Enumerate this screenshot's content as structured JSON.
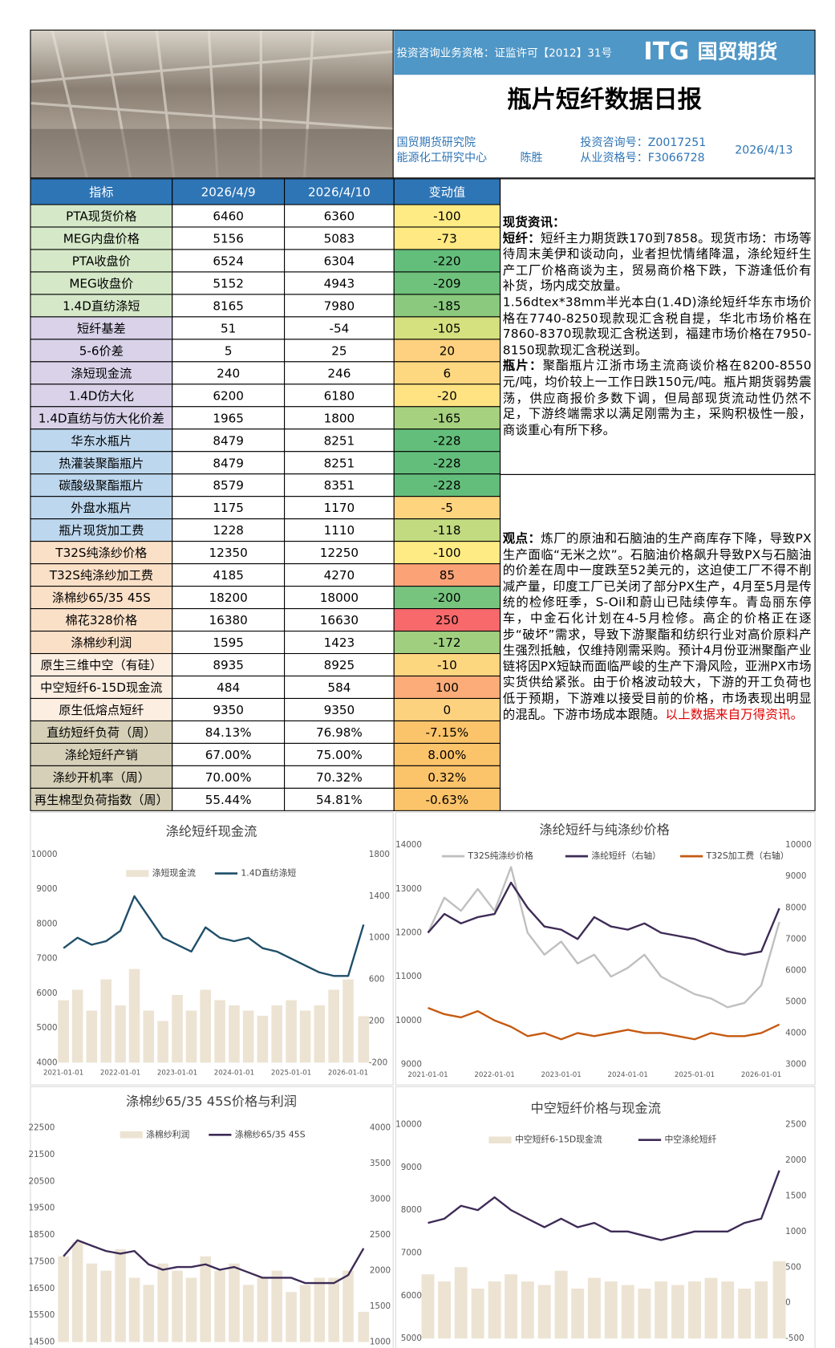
{
  "header": {
    "qualification": "投资咨询业务资格：证监许可【2012】31号",
    "brand_latin": "ITG",
    "brand": "国贸期货",
    "title": "瓶片短纤数据日报",
    "institute": "国贸期货研究院",
    "center": "能源化工研究中心",
    "analyst": "陈胜",
    "consult_no": "投资咨询号：Z0017251",
    "license_no": "从业资格号：F3066728",
    "date": "2026/4/13"
  },
  "table": {
    "columns": [
      "指标",
      "2026/4/9",
      "2026/4/10",
      "变动值"
    ],
    "rows": [
      [
        "PTA现货价格",
        "6460",
        "6360",
        "-100"
      ],
      [
        "MEG内盘价格",
        "5156",
        "5083",
        "-73"
      ],
      [
        "PTA收盘价",
        "6524",
        "6304",
        "-220"
      ],
      [
        "MEG收盘价",
        "5152",
        "4943",
        "-209"
      ],
      [
        "1.4D直纺涤短",
        "8165",
        "7980",
        "-185"
      ],
      [
        "短纤基差",
        "51",
        "-54",
        "-105"
      ],
      [
        "5-6价差",
        "5",
        "25",
        "20"
      ],
      [
        "涤短现金流",
        "240",
        "246",
        "6"
      ],
      [
        "1.4D仿大化",
        "6200",
        "6180",
        "-20"
      ],
      [
        "1.4D直纺与仿大化价差",
        "1965",
        "1800",
        "-165"
      ],
      [
        "华东水瓶片",
        "8479",
        "8251",
        "-228"
      ],
      [
        "热灌装聚酯瓶片",
        "8479",
        "8251",
        "-228"
      ],
      [
        "碳酸级聚酯瓶片",
        "8579",
        "8351",
        "-228"
      ],
      [
        "外盘水瓶片",
        "1175",
        "1170",
        "-5"
      ],
      [
        "瓶片现货加工费",
        "1228",
        "1110",
        "-118"
      ],
      [
        "T32S纯涤纱价格",
        "12350",
        "12250",
        "-100"
      ],
      [
        "T32S纯涤纱加工费",
        "4185",
        "4270",
        "85"
      ],
      [
        "涤棉纱65/35 45S",
        "18200",
        "18000",
        "-200"
      ],
      [
        "棉花328价格",
        "16380",
        "16630",
        "250"
      ],
      [
        "涤棉纱利润",
        "1595",
        "1423",
        "-172"
      ],
      [
        "原生三维中空（有硅）",
        "8935",
        "8925",
        "-10"
      ],
      [
        "中空短纤6-15D现金流",
        "484",
        "584",
        "100"
      ],
      [
        "原生低熔点短纤",
        "9350",
        "9350",
        "0"
      ],
      [
        "直纺短纤负荷（周）",
        "84.13%",
        "76.98%",
        "-7.15%"
      ],
      [
        "涤纶短纤产销",
        "67.00%",
        "75.00%",
        "8.00%"
      ],
      [
        "涤纱开机率（周）",
        "70.00%",
        "70.32%",
        "0.32%"
      ],
      [
        "再生棉型负荷指数（周）",
        "55.44%",
        "54.81%",
        "-0.63%"
      ]
    ],
    "label_colors": [
      "#d5e8c8",
      "#d5e8c8",
      "#d5e8c8",
      "#d5e8c8",
      "#d5e8c8",
      "#d9d2e9",
      "#d9d2e9",
      "#d9d2e9",
      "#d9d2e9",
      "#d9d2e9",
      "#bdd7ee",
      "#bdd7ee",
      "#bdd7ee",
      "#bdd7ee",
      "#bdd7ee",
      "#fbe0c8",
      "#fbe0c8",
      "#fbe0c8",
      "#fbe0c8",
      "#fbe0c8",
      "#fdeee2",
      "#fdeee2",
      "#fdeee2",
      "#d6d0b8",
      "#d6d0b8",
      "#d6d0b8",
      "#d6d0b8"
    ],
    "change_colors": [
      "#ffeb84",
      "#ffe982",
      "#63be7b",
      "#6fc27c",
      "#8ac97e",
      "#d5e07f",
      "#fdd17f",
      "#fed880",
      "#ffe383",
      "#a6d17f",
      "#63be7b",
      "#63be7b",
      "#63be7b",
      "#fed47f",
      "#c2db80",
      "#ffeb84",
      "#fba276",
      "#76c47d",
      "#f8696b",
      "#a0d07f",
      "#fdd680",
      "#fbac78",
      "#fdd27f",
      "#fcc46a",
      "#fcc46a",
      "#fcc46a",
      "#fcc46a"
    ]
  },
  "commentary": {
    "spot_heading": "现货资讯：",
    "fiber_label": "短纤：",
    "fiber_text": "短纤主力期货跌170到7858。现货市场：市场等待周末美伊和谈动向，业者担忧情绪降温，涤纶短纤生产工厂价格商谈为主，贸易商价格下跌，下游逢低价有补货，场内成交放量。",
    "fiber_prices": "1.56dtex*38mm半光本白(1.4D)涤纶短纤华东市场价格在7740-8250现款现汇含税自提，华北市场价格在7860-8370现款现汇含税送到，福建市场价格在7950-8150现款现汇含税送到。",
    "bottle_label": "瓶片：",
    "bottle_text": "聚酯瓶片江浙市场主流商谈价格在8200-8550元/吨，均价较上一工作日跌150元/吨。瓶片期货弱势震荡，供应商报价多数下调，但局部现货流动性仍然不足，下游终端需求以满足刚需为主，采购积极性一般，商谈重心有所下移。",
    "view_label": "观点：",
    "view_text": "炼厂的原油和石脑油的生产商库存下降，导致PX生产面临“无米之炊”。石脑油价格飙升导致PX与石脑油的价差在周中一度跌至52美元的，这迫使工厂不得不削减产量，印度工厂已关闭了部分PX生产，4月至5月是传统的检修旺季，S-Oil和蔚山已陆续停车。青岛丽东停车，中金石化计划在4-5月检修。高企的价格正在逐步“破坏”需求，导致下游聚酯和纺织行业对高价原料产生强烈抵触，仅维持刚需采购。预计4月份亚洲聚酯产业链将因PX短缺而面临严峻的生产下滑风险，亚洲PX市场实货供给紧张。由于价格波动较大，下游的开工负荷也低于预期，下游难以接受目前的价格，市场表现出明显的混乱。下游市场成本跟随。",
    "source": "以上数据来自万得资讯。"
  },
  "charts": [
    {
      "type": "line",
      "title": "涤纶短纤现金流",
      "x": [
        "2021-01-01",
        "2021-04-01",
        "2021-07-01",
        "2021-10-01",
        "2022-01-01",
        "2022-04-01",
        "2022-07-01",
        "2022-10-01",
        "2023-01-01",
        "2023-04-01",
        "2023-07-01",
        "2023-10-01",
        "2024-01-01",
        "2024-04-01",
        "2024-07-01",
        "2024-10-01",
        "2025-01-01",
        "2025-04-01",
        "2025-07-01",
        "2025-10-01",
        "2026-01-01",
        "2026-04-10"
      ],
      "xlim": [
        "2021-01-01",
        "2026-04-10"
      ],
      "xticks": [
        "2021-01-01",
        "2022-01-01",
        "2023-01-01",
        "2024-01-01",
        "2025-01-01",
        "2026-01-01"
      ],
      "ylim": [
        4000,
        10000
      ],
      "yticks": [
        4000,
        5000,
        6000,
        7000,
        8000,
        9000,
        10000
      ],
      "y2lim": [
        -200,
        1800
      ],
      "y2ticks": [
        -200,
        200,
        600,
        1000,
        1400,
        1800
      ],
      "series": [
        {
          "name": "涤短现金流",
          "type": "bar",
          "axis": "y2",
          "color": "#ede3d3",
          "values": [
            400,
            500,
            300,
            600,
            350,
            700,
            300,
            200,
            450,
            300,
            500,
            400,
            350,
            300,
            250,
            350,
            400,
            300,
            350,
            500,
            600,
            246
          ]
        },
        {
          "name": "1.4D直纺涤短",
          "type": "line",
          "color": "#1f4e69",
          "values": [
            7300,
            7600,
            7400,
            7500,
            7800,
            8800,
            8200,
            7600,
            7400,
            7200,
            7900,
            7600,
            7500,
            7600,
            7300,
            7200,
            7000,
            6800,
            6600,
            6500,
            6500,
            7980
          ]
        }
      ]
    },
    {
      "type": "line",
      "title": "涤纶短纤与纯涤纱价格",
      "x": [
        "2021-01-01",
        "2021-04-01",
        "2021-07-01",
        "2021-10-01",
        "2022-01-01",
        "2022-04-01",
        "2022-07-01",
        "2022-10-01",
        "2023-01-01",
        "2023-04-01",
        "2023-07-01",
        "2023-10-01",
        "2024-01-01",
        "2024-04-01",
        "2024-07-01",
        "2024-10-01",
        "2025-01-01",
        "2025-04-01",
        "2025-07-01",
        "2025-10-01",
        "2026-01-01",
        "2026-04-10"
      ],
      "xlim": [
        "2021-01-01",
        "2026-04-10"
      ],
      "xticks": [
        "2021-01-01",
        "2022-01-01",
        "2023-01-01",
        "2024-01-01",
        "2025-01-01",
        "2026-01-01"
      ],
      "ylim": [
        9000,
        14000
      ],
      "yticks": [
        9000,
        10000,
        11000,
        12000,
        13000,
        14000
      ],
      "y2lim": [
        3000,
        10000
      ],
      "y2ticks": [
        3000,
        4000,
        5000,
        6000,
        7000,
        8000,
        9000,
        10000
      ],
      "series": [
        {
          "name": "T32S纯涤纱价格",
          "type": "line",
          "color": "#bfbfbf",
          "values": [
            12000,
            12800,
            12500,
            13000,
            12500,
            13500,
            12000,
            11500,
            11800,
            11300,
            11500,
            11000,
            11200,
            11500,
            11000,
            10800,
            10600,
            10500,
            10300,
            10400,
            10800,
            12250
          ]
        },
        {
          "name": "涤纶短纤（右轴）",
          "type": "line",
          "axis": "y2",
          "color": "#3d2b56",
          "values": [
            7200,
            7800,
            7500,
            7700,
            7800,
            8800,
            8000,
            7400,
            7300,
            7000,
            7700,
            7400,
            7300,
            7500,
            7200,
            7100,
            7000,
            6800,
            6600,
            6500,
            6600,
            7980
          ]
        },
        {
          "name": "T32S加工费（右轴）",
          "type": "line",
          "axis": "y2",
          "color": "#c55a11",
          "values": [
            4800,
            4600,
            4500,
            4700,
            4400,
            4200,
            3900,
            4000,
            3800,
            4000,
            3900,
            4000,
            4100,
            4000,
            4000,
            3900,
            3800,
            4000,
            3900,
            3900,
            4000,
            4270
          ]
        }
      ]
    },
    {
      "type": "line",
      "title": "涤棉纱65/35 45S价格与利润",
      "x": [
        "2021-01-01",
        "2021-04-01",
        "2021-07-01",
        "2021-10-01",
        "2022-01-01",
        "2022-04-01",
        "2022-07-01",
        "2022-10-01",
        "2023-01-01",
        "2023-04-01",
        "2023-07-01",
        "2023-10-01",
        "2024-01-01",
        "2024-04-01",
        "2024-07-01",
        "2024-10-01",
        "2025-01-01",
        "2025-04-01",
        "2025-07-01",
        "2025-10-01",
        "2026-01-01",
        "2026-04-10"
      ],
      "xlim": [
        "2021-01-01",
        "2026-04-10"
      ],
      "ylim": [
        14500,
        22500
      ],
      "yticks": [
        14500,
        15500,
        16500,
        17500,
        18500,
        19500,
        20500,
        21500,
        22500
      ],
      "y2lim": [
        1000,
        4000
      ],
      "y2ticks": [
        1000,
        1500,
        2000,
        2500,
        3000,
        3500,
        4000
      ],
      "series": [
        {
          "name": "涤棉纱利润",
          "type": "bar",
          "axis": "y2",
          "color": "#ede3d3",
          "values": [
            2200,
            2400,
            2100,
            2000,
            2300,
            1900,
            1800,
            2100,
            2000,
            1900,
            2200,
            2000,
            2100,
            1800,
            1900,
            2000,
            1700,
            1800,
            1900,
            1900,
            2000,
            1423
          ]
        },
        {
          "name": "涤棉纱65/35 45S",
          "type": "line",
          "color": "#3d2b56",
          "values": [
            17700,
            18300,
            18100,
            17900,
            17800,
            17900,
            17400,
            17200,
            17300,
            17300,
            17400,
            17200,
            17300,
            17100,
            16900,
            16900,
            16900,
            16700,
            16700,
            16700,
            17000,
            18000
          ]
        }
      ]
    },
    {
      "type": "line",
      "title": "中空短纤价格与现金流",
      "x": [
        "2021-01-01",
        "2021-04-01",
        "2021-07-01",
        "2021-10-01",
        "2022-01-01",
        "2022-04-01",
        "2022-07-01",
        "2022-10-01",
        "2023-01-01",
        "2023-04-01",
        "2023-07-01",
        "2023-10-01",
        "2024-01-01",
        "2024-04-01",
        "2024-07-01",
        "2024-10-01",
        "2025-01-01",
        "2025-04-01",
        "2025-07-01",
        "2025-10-01",
        "2026-01-01",
        "2026-04-10"
      ],
      "xlim": [
        "2021-01-01",
        "2026-04-10"
      ],
      "ylim": [
        5000,
        10000
      ],
      "yticks": [
        5000,
        6000,
        7000,
        8000,
        9000,
        10000
      ],
      "y2lim": [
        -500,
        2500
      ],
      "y2ticks": [
        -500,
        0,
        500,
        1000,
        1500,
        2000,
        2500
      ],
      "series": [
        {
          "name": "中空短纤6-15D现金流",
          "type": "bar",
          "axis": "y2",
          "color": "#ede3d3",
          "values": [
            400,
            300,
            500,
            200,
            300,
            400,
            300,
            250,
            450,
            200,
            350,
            300,
            250,
            200,
            300,
            250,
            300,
            350,
            300,
            200,
            300,
            584
          ]
        },
        {
          "name": "中空涤纶短纤",
          "type": "line",
          "color": "#3d2b56",
          "values": [
            7700,
            7800,
            8100,
            8000,
            8300,
            8000,
            7800,
            7600,
            7800,
            7600,
            7700,
            7500,
            7500,
            7400,
            7300,
            7400,
            7500,
            7500,
            7500,
            7700,
            7800,
            8925
          ]
        }
      ]
    }
  ]
}
